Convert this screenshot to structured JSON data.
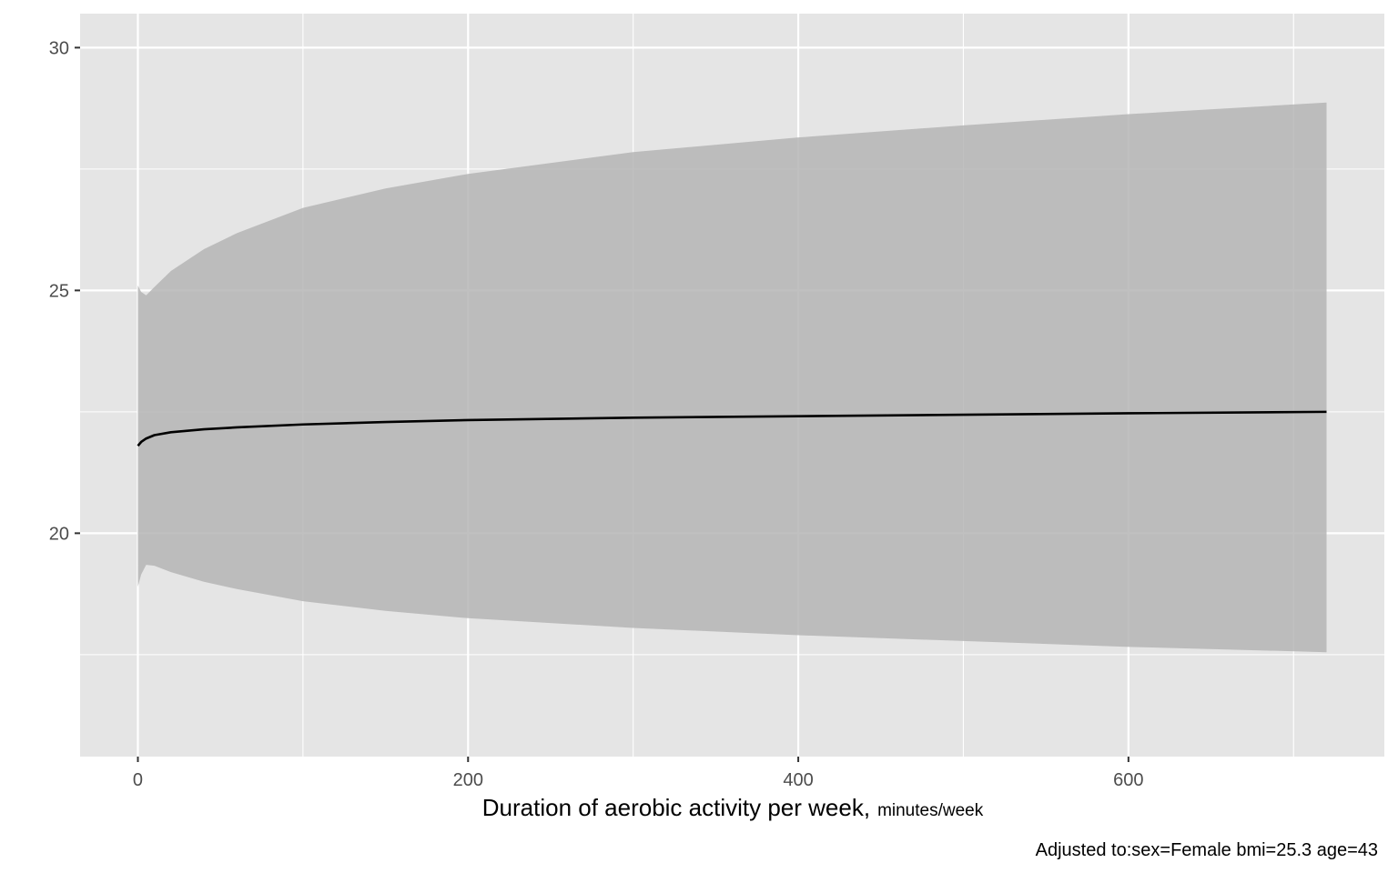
{
  "chart_data": {
    "type": "line",
    "title": "",
    "xlabel": "Duration of aerobic activity per week,",
    "xlabel_unit": "minutes/week",
    "ylabel": "",
    "caption": "Adjusted to:sex=Female bmi=25.3 age=43",
    "xlim": [
      -35,
      755
    ],
    "ylim": [
      15.4,
      30.7
    ],
    "x_ticks": [
      0,
      200,
      400,
      600
    ],
    "x_tick_labels": [
      "0",
      "200",
      "400",
      "600"
    ],
    "y_ticks": [
      20,
      25,
      30
    ],
    "y_tick_labels": [
      "20",
      "25",
      "30"
    ],
    "grid": true,
    "legend": "none",
    "colors": {
      "panel_background": "#e5e5e5",
      "grid": "#ffffff",
      "ribbon": "#b5b5b5",
      "line": "#000000",
      "tick_text": "#4d4d4d"
    },
    "series": [
      {
        "x": [
          0,
          2,
          5,
          10,
          20,
          40,
          60,
          100,
          150,
          200,
          300,
          400,
          500,
          600,
          720
        ],
        "y": [
          21.8,
          21.88,
          21.95,
          22.02,
          22.08,
          22.14,
          22.18,
          22.24,
          22.29,
          22.33,
          22.38,
          22.41,
          22.44,
          22.47,
          22.5
        ],
        "ymin": [
          18.9,
          19.15,
          19.35,
          19.33,
          19.2,
          19.0,
          18.85,
          18.6,
          18.4,
          18.25,
          18.05,
          17.9,
          17.78,
          17.66,
          17.55
        ],
        "ymax": [
          25.1,
          24.97,
          24.9,
          25.07,
          25.4,
          25.85,
          26.18,
          26.7,
          27.1,
          27.4,
          27.85,
          28.15,
          28.4,
          28.63,
          28.87
        ]
      }
    ]
  }
}
